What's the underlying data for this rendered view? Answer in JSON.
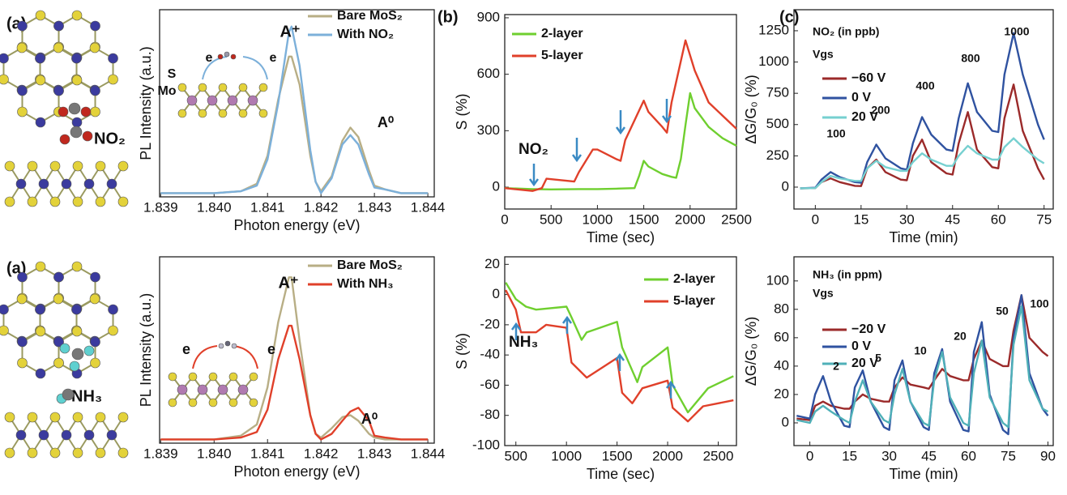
{
  "panel_labels": [
    "(a)",
    "(b)",
    "(c)",
    "(a)"
  ],
  "molecules": [
    "NO₂",
    "NH₃"
  ],
  "chart_data": [
    {
      "type": "line",
      "xlabel": "Photon energy (eV)",
      "ylabel": "PL Intensity (a.u.)",
      "xlim": [
        1.83898,
        1.84412
      ],
      "ylim": [
        0,
        100
      ],
      "xticks": [
        1.839,
        {
          "value": 1.84,
          "label": "1.840"
        },
        1.841,
        1.842,
        1.843,
        1.844
      ],
      "x": [
        1.839,
        1.8395,
        1.84,
        1.8405,
        1.8408,
        1.841,
        1.8412,
        1.8414,
        1.84145,
        1.8416,
        1.8418,
        1.8419,
        1.842,
        1.8422,
        1.8424,
        1.84255,
        1.8427,
        1.8429,
        1.843,
        1.8432,
        1.8435,
        1.844
      ],
      "series": [
        {
          "name": "Bare MoS₂",
          "color": "#b8ae85",
          "values": [
            2,
            2,
            2,
            3,
            7,
            22,
            52,
            75,
            75,
            60,
            22,
            8,
            3,
            11,
            30,
            37,
            32,
            14,
            6,
            4,
            2,
            2
          ]
        },
        {
          "name": "With NO₂",
          "color": "#7cb0da",
          "values": [
            2,
            2,
            2,
            3,
            6,
            20,
            50,
            88,
            91,
            70,
            25,
            8,
            2,
            10,
            28,
            33,
            28,
            12,
            5,
            4,
            2,
            2
          ]
        }
      ],
      "annotations": [
        "A⁺",
        "A⁰",
        "S",
        "Mo",
        "e",
        "e"
      ]
    },
    {
      "type": "line",
      "xlabel": "Photon energy (eV)",
      "ylabel": "PL Intensity (a.u.)",
      "xlim": [
        1.83898,
        1.84412
      ],
      "ylim": [
        0,
        100
      ],
      "xticks": [
        1.839,
        {
          "value": 1.84,
          "label": "1.840"
        },
        1.841,
        1.842,
        1.843,
        1.844
      ],
      "x": [
        1.839,
        1.8395,
        1.84,
        1.8405,
        1.8408,
        1.841,
        1.8412,
        1.8414,
        1.84145,
        1.8416,
        1.8418,
        1.8419,
        1.842,
        1.8422,
        1.8424,
        1.84255,
        1.8427,
        1.8429,
        1.843,
        1.8432,
        1.8435,
        1.844
      ],
      "series": [
        {
          "name": "Bare MoS₂",
          "color": "#b8ae85",
          "values": [
            2,
            2,
            2,
            4,
            10,
            30,
            65,
            89,
            89,
            55,
            15,
            5,
            3,
            8,
            14,
            15,
            12,
            5,
            3,
            2,
            2,
            2
          ]
        },
        {
          "name": "With NH₃",
          "color": "#e0402a",
          "values": [
            2,
            2,
            2,
            3,
            6,
            18,
            45,
            63,
            63,
            45,
            15,
            5,
            2,
            5,
            12,
            17,
            19,
            12,
            4,
            3,
            2,
            2
          ]
        }
      ],
      "annotations": [
        "A⁺",
        "A⁰",
        "e",
        "e"
      ]
    },
    {
      "type": "line",
      "xlabel": "Time (sec)",
      "ylabel": "S (%)",
      "xlim": [
        0,
        2500
      ],
      "ylim": [
        -116,
        917
      ],
      "xticks": [
        0,
        500,
        1000,
        1500,
        2000,
        2500
      ],
      "yticks": [
        0,
        300,
        600,
        900
      ],
      "series": [
        {
          "name": "2-layer",
          "color": "#6fcf2f",
          "x": [
            0,
            300,
            500,
            800,
            1000,
            1200,
            1400,
            1450,
            1500,
            1550,
            1700,
            1800,
            1850,
            1900,
            1950,
            2000,
            2050,
            2200,
            2350,
            2500
          ],
          "values": [
            -5,
            -10,
            -12,
            -10,
            -10,
            -8,
            -5,
            60,
            140,
            110,
            70,
            55,
            50,
            150,
            330,
            500,
            420,
            320,
            260,
            220
          ]
        },
        {
          "name": "5-layer",
          "color": "#e0402a",
          "x": [
            0,
            300,
            400,
            450,
            750,
            800,
            950,
            1000,
            1200,
            1250,
            1300,
            1500,
            1550,
            1700,
            1750,
            1800,
            1950,
            2050,
            2200,
            2500
          ],
          "values": [
            -5,
            -20,
            -5,
            45,
            30,
            80,
            200,
            200,
            150,
            140,
            250,
            460,
            400,
            320,
            290,
            450,
            780,
            620,
            450,
            310
          ]
        }
      ],
      "annotations": [
        "NO₂"
      ]
    },
    {
      "type": "line",
      "xlabel": "Time (sec)",
      "ylabel": "S (%)",
      "xlim": [
        390,
        2680
      ],
      "ylim": [
        -100,
        25
      ],
      "xticks": [
        500,
        1000,
        1500,
        2000,
        2500
      ],
      "yticks": [
        20,
        0,
        -20,
        -40,
        -60,
        -80,
        -100
      ],
      "series": [
        {
          "name": "2-layer",
          "color": "#6fcf2f",
          "x": [
            400,
            500,
            600,
            700,
            1000,
            1050,
            1150,
            1200,
            1500,
            1550,
            1700,
            1750,
            2000,
            2050,
            2200,
            2400,
            2650
          ],
          "values": [
            8,
            -3,
            -8,
            -10,
            -8,
            -15,
            -30,
            -25,
            -18,
            -35,
            -58,
            -48,
            -35,
            -60,
            -78,
            -62,
            -54
          ]
        },
        {
          "name": "5-layer",
          "color": "#e0402a",
          "x": [
            400,
            500,
            550,
            700,
            800,
            1000,
            1050,
            1200,
            1500,
            1550,
            1650,
            1750,
            2000,
            2050,
            2200,
            2350,
            2650
          ],
          "values": [
            3,
            -10,
            -25,
            -25,
            -20,
            -22,
            -45,
            -55,
            -42,
            -65,
            -72,
            -62,
            -57,
            -75,
            -84,
            -74,
            -70
          ]
        }
      ],
      "annotations": [
        "NH₃"
      ]
    },
    {
      "type": "line",
      "xlabel": "Time (min)",
      "ylabel": "ΔG/G₀ (%)",
      "xlim": [
        -7,
        78
      ],
      "ylim": [
        -175,
        1418
      ],
      "xticks": [
        0,
        15,
        30,
        45,
        60,
        75
      ],
      "yticks": [
        0,
        250,
        500,
        750,
        1000,
        1250
      ],
      "x": [
        -5,
        0,
        2,
        5,
        8,
        13,
        15,
        17,
        20,
        23,
        28,
        30,
        32,
        35,
        38,
        43,
        45,
        47,
        50,
        53,
        58,
        60,
        62,
        65,
        68,
        73,
        75
      ],
      "series": [
        {
          "name": "−60 V",
          "color": "#9b2a2a",
          "values": [
            -10,
            -8,
            40,
            70,
            40,
            10,
            8,
            150,
            220,
            120,
            60,
            55,
            250,
            380,
            200,
            110,
            100,
            350,
            600,
            300,
            160,
            150,
            550,
            820,
            450,
            150,
            60
          ]
        },
        {
          "name": "0 V",
          "color": "#2f52a0",
          "values": [
            -10,
            -5,
            60,
            120,
            80,
            40,
            35,
            200,
            340,
            230,
            150,
            140,
            350,
            560,
            420,
            300,
            290,
            550,
            830,
            600,
            450,
            440,
            900,
            1230,
            900,
            500,
            380
          ]
        },
        {
          "name": "20 V",
          "color": "#76d0d0",
          "values": [
            -10,
            -8,
            40,
            90,
            70,
            50,
            50,
            150,
            210,
            160,
            130,
            130,
            200,
            270,
            220,
            170,
            170,
            250,
            330,
            270,
            220,
            220,
            320,
            390,
            320,
            220,
            190
          ]
        }
      ],
      "annotations": [
        "NO₂ (in ppb)",
        "Vgs",
        "100",
        "200",
        "400",
        "800",
        "1000"
      ]
    },
    {
      "type": "line",
      "xlabel": "Time (min)",
      "ylabel": "ΔG/G₀ (%)",
      "xlim": [
        -6,
        92
      ],
      "ylim": [
        -16,
        117
      ],
      "xticks": [
        0,
        15,
        30,
        45,
        60,
        75,
        90
      ],
      "yticks": [
        0,
        20,
        40,
        60,
        80,
        100
      ],
      "x": [
        -5,
        0,
        2,
        5,
        8,
        13,
        15,
        17,
        20,
        23,
        28,
        30,
        32,
        35,
        38,
        43,
        45,
        47,
        50,
        53,
        58,
        60,
        62,
        65,
        68,
        73,
        75,
        77,
        80,
        83,
        88,
        90
      ],
      "series": [
        {
          "name": "−20 V",
          "color": "#9b2a2a",
          "values": [
            3,
            2,
            12,
            15,
            12,
            10,
            10,
            15,
            20,
            17,
            15,
            15,
            25,
            32,
            27,
            25,
            24,
            30,
            38,
            33,
            30,
            30,
            45,
            58,
            45,
            40,
            40,
            65,
            90,
            60,
            50,
            47
          ]
        },
        {
          "name": "0 V",
          "color": "#2f52a0",
          "values": [
            5,
            3,
            20,
            33,
            15,
            -2,
            -3,
            25,
            37,
            15,
            -3,
            -5,
            30,
            44,
            15,
            -3,
            -5,
            35,
            52,
            15,
            -5,
            -6,
            50,
            71,
            20,
            -5,
            -8,
            60,
            90,
            35,
            10,
            5
          ]
        },
        {
          "name": "20 V",
          "color": "#4fb0b8",
          "values": [
            2,
            0,
            8,
            12,
            8,
            2,
            0,
            15,
            30,
            15,
            2,
            0,
            20,
            38,
            15,
            0,
            -2,
            30,
            50,
            18,
            0,
            -2,
            35,
            58,
            18,
            0,
            -3,
            55,
            82,
            30,
            10,
            8
          ]
        }
      ],
      "annotations": [
        "NH₃ (in ppm)",
        "Vgs",
        "2",
        "5",
        "10",
        "20",
        "50",
        "100"
      ]
    }
  ]
}
